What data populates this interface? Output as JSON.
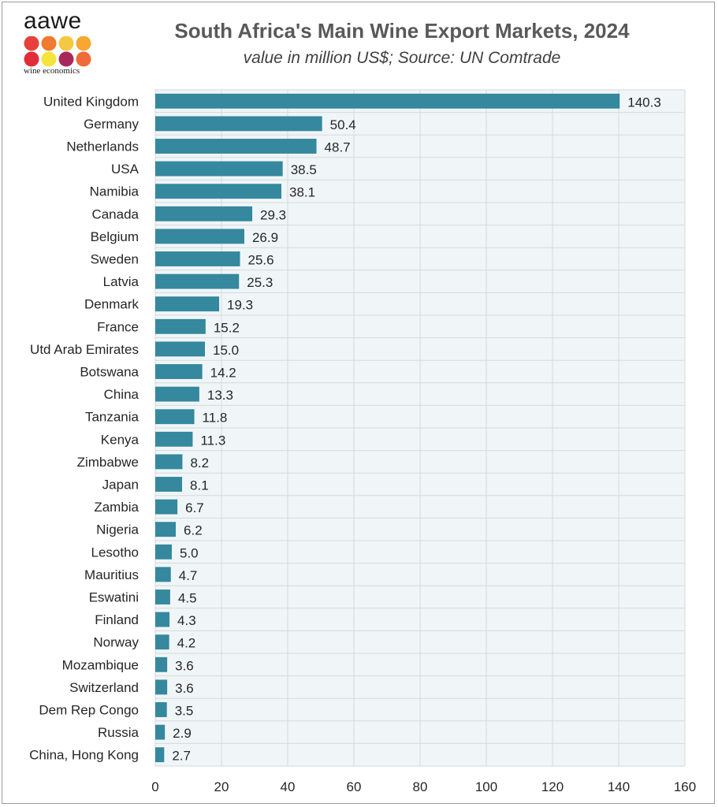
{
  "header": {
    "logo_word": "aawe",
    "logo_tag": "wine economics",
    "logo_dot_colors": [
      "#e8403a",
      "#f07a2e",
      "#f5c842",
      "#f7a734",
      "#e12d39",
      "#f5e43b",
      "#a8285a",
      "#ef6b3a"
    ],
    "title": "South Africa's Main Wine Export Markets, 2024",
    "subtitle": "value in million US$; Source: UN Comtrade"
  },
  "colors": {
    "bar": "#35889d",
    "plot_bg": "#f0f6f8",
    "grid": "#d3d9dc"
  },
  "chart_data": {
    "type": "bar",
    "orientation": "horizontal",
    "categories": [
      "United Kingdom",
      "Germany",
      "Netherlands",
      "USA",
      "Namibia",
      "Canada",
      "Belgium",
      "Sweden",
      "Latvia",
      "Denmark",
      "France",
      "Utd Arab Emirates",
      "Botswana",
      "China",
      "Tanzania",
      "Kenya",
      "Zimbabwe",
      "Japan",
      "Zambia",
      "Nigeria",
      "Lesotho",
      "Mauritius",
      "Eswatini",
      "Finland",
      "Norway",
      "Mozambique",
      "Switzerland",
      "Dem Rep Congo",
      "Russia",
      "China, Hong Kong"
    ],
    "values": [
      140.3,
      50.4,
      48.7,
      38.5,
      38.1,
      29.3,
      26.9,
      25.6,
      25.3,
      19.3,
      15.2,
      15.0,
      14.2,
      13.3,
      11.8,
      11.3,
      8.2,
      8.1,
      6.7,
      6.2,
      5.0,
      4.7,
      4.5,
      4.3,
      4.2,
      3.6,
      3.6,
      3.5,
      2.9,
      2.7
    ],
    "value_labels": [
      "140.3",
      "50.4",
      "48.7",
      "38.5",
      "38.1",
      "29.3",
      "26.9",
      "25.6",
      "25.3",
      "19.3",
      "15.2",
      "15.0",
      "14.2",
      "13.3",
      "11.8",
      "11.3",
      "8.2",
      "8.1",
      "6.7",
      "6.2",
      "5.0",
      "4.7",
      "4.5",
      "4.3",
      "4.2",
      "3.6",
      "3.6",
      "3.5",
      "2.9",
      "2.7"
    ],
    "xlim": [
      0,
      160
    ],
    "xticks": [
      0,
      20,
      40,
      60,
      80,
      100,
      120,
      140,
      160
    ],
    "grid": true,
    "legend": "none"
  }
}
